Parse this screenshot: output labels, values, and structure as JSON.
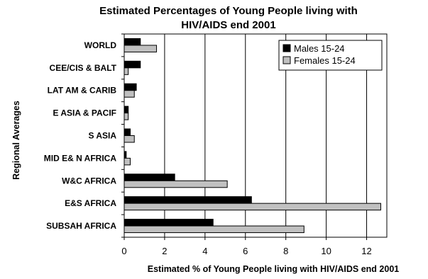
{
  "chart_data": {
    "type": "bar",
    "orientation": "horizontal",
    "title_lines": [
      "Estimated Percentages of Young People living with",
      "HIV/AIDS end 2001"
    ],
    "xlabel": "Estimated % of Young People living with HIV/AIDS end 2001",
    "ylabel": "Regional Averages",
    "categories": [
      "WORLD",
      "CEE/CIS & BALT",
      "LAT AM & CARIB",
      "E ASIA & PACIF",
      "S ASIA",
      "MID E& N AFRICA",
      "W&C AFRICA",
      "E&S AFRICA",
      "SUBSAH AFRICA"
    ],
    "series": [
      {
        "name": "Males 15-24",
        "color": "#000000",
        "values": [
          0.8,
          0.8,
          0.6,
          0.2,
          0.3,
          0.1,
          2.5,
          6.3,
          4.4
        ]
      },
      {
        "name": "Females 15-24",
        "color": "#c0c0c0",
        "values": [
          1.6,
          0.2,
          0.5,
          0.2,
          0.5,
          0.3,
          5.1,
          12.7,
          8.9
        ]
      }
    ],
    "xlim": [
      0,
      13
    ],
    "xticks": [
      "0",
      "2",
      "4",
      "6",
      "8",
      "10",
      "12"
    ],
    "grid": "vertical",
    "legend_position": "top-right"
  }
}
